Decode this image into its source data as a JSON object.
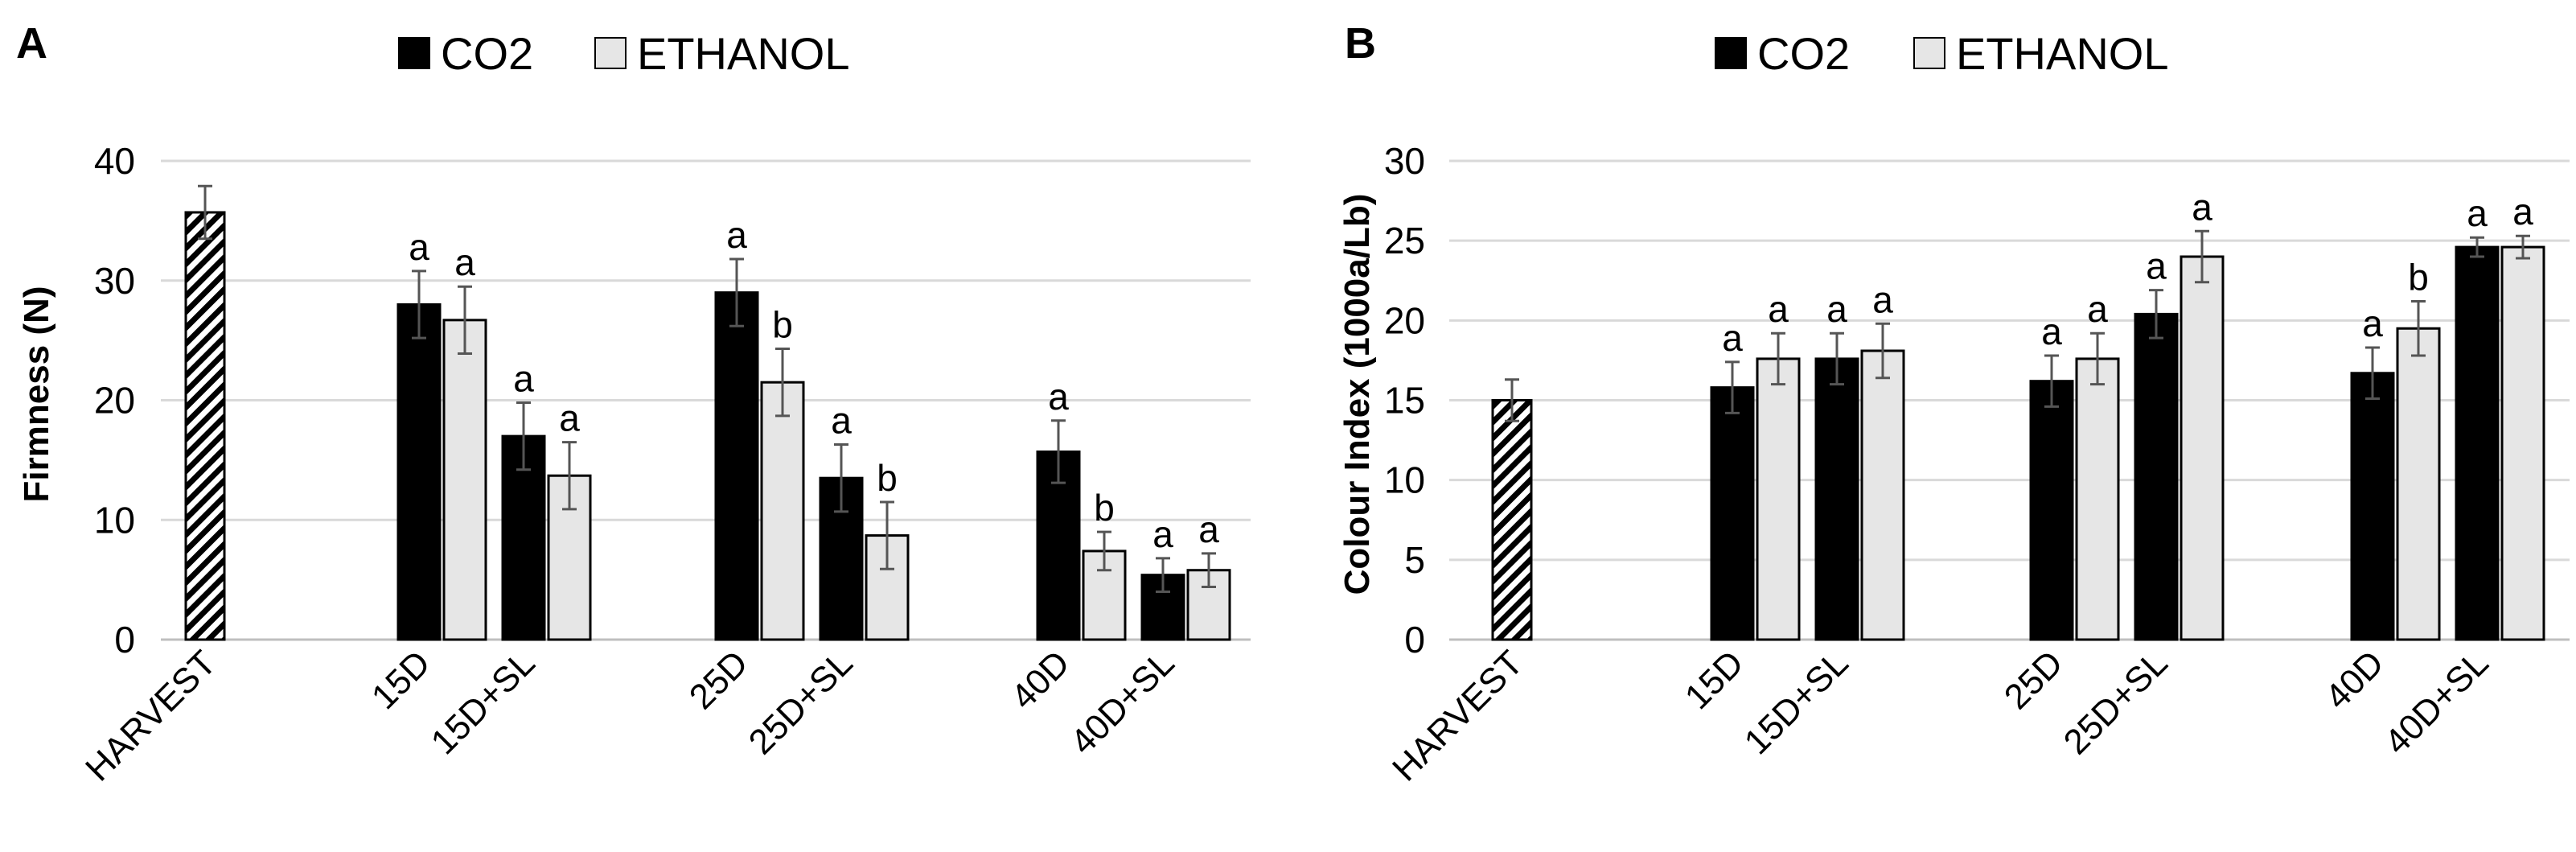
{
  "legend": {
    "co2_label": "CO2",
    "ethanol_label": "ETHANOL"
  },
  "colors": {
    "co2": "#000000",
    "ethanol": "#e6e6e6",
    "harvest_hatch": "#000000",
    "grid": "#d9d9d9",
    "error_bar": "#555555"
  },
  "chart_data": [
    {
      "panel": "A",
      "type": "bar",
      "ylabel": "Firmness (N)",
      "xlabel": "",
      "ylim": [
        0,
        40
      ],
      "yticks": [
        0,
        10,
        20,
        30,
        40
      ],
      "grid": true,
      "legend_position": "top-center",
      "harvest": {
        "label": "HARVEST",
        "value": 35.7,
        "error": 2.2
      },
      "categories": [
        "15D",
        "15D+SL",
        "25D",
        "25D+SL",
        "40D",
        "40D+SL"
      ],
      "series": [
        {
          "name": "CO2",
          "values": [
            28.0,
            17.0,
            29.0,
            13.5,
            15.7,
            5.4
          ],
          "errors": [
            2.8,
            2.8,
            2.8,
            2.8,
            2.6,
            1.4
          ],
          "letters": [
            "a",
            "a",
            "a",
            "a",
            "a",
            "a"
          ]
        },
        {
          "name": "ETHANOL",
          "values": [
            26.7,
            13.7,
            21.5,
            8.7,
            7.4,
            5.8
          ],
          "errors": [
            2.8,
            2.8,
            2.8,
            2.8,
            1.6,
            1.4
          ],
          "letters": [
            "a",
            "a",
            "b",
            "b",
            "b",
            "a"
          ]
        }
      ]
    },
    {
      "panel": "B",
      "type": "bar",
      "ylabel": "Colour Index (1000a/Lb)",
      "xlabel": "",
      "ylim": [
        0,
        30
      ],
      "yticks": [
        0,
        5,
        10,
        15,
        20,
        25,
        30
      ],
      "grid": true,
      "legend_position": "top-center",
      "harvest": {
        "label": "HARVEST",
        "value": 15.0,
        "error": 1.3
      },
      "categories": [
        "15D",
        "15D+SL",
        "25D",
        "25D+SL",
        "40D",
        "40D+SL"
      ],
      "series": [
        {
          "name": "CO2",
          "values": [
            15.8,
            17.6,
            16.2,
            20.4,
            16.7,
            24.6
          ],
          "errors": [
            1.6,
            1.6,
            1.6,
            1.5,
            1.6,
            0.6
          ],
          "letters": [
            "a",
            "a",
            "a",
            "a",
            "a",
            "a"
          ]
        },
        {
          "name": "ETHANOL",
          "values": [
            17.6,
            18.1,
            17.6,
            24.0,
            19.5,
            24.6
          ],
          "errors": [
            1.6,
            1.7,
            1.6,
            1.6,
            1.7,
            0.7
          ],
          "letters": [
            "a",
            "a",
            "a",
            "a",
            "b",
            "a"
          ]
        }
      ]
    }
  ]
}
